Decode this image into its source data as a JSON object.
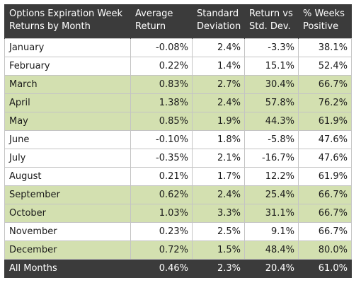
{
  "headers": [
    "Options Expiration Week Returns by Month",
    "Average Return",
    "Standard Deviation",
    "Return vs Std. Dev.",
    "% Weeks Positive"
  ],
  "rows": [
    {
      "month": "January",
      "avg": "-0.08%",
      "std": "2.4%",
      "ratio": "-3.3%",
      "pct": "38.1%",
      "highlight": false
    },
    {
      "month": "February",
      "avg": "0.22%",
      "std": "1.4%",
      "ratio": "15.1%",
      "pct": "52.4%",
      "highlight": false
    },
    {
      "month": "March",
      "avg": "0.83%",
      "std": "2.7%",
      "ratio": "30.4%",
      "pct": "66.7%",
      "highlight": true
    },
    {
      "month": "April",
      "avg": "1.38%",
      "std": "2.4%",
      "ratio": "57.8%",
      "pct": "76.2%",
      "highlight": true
    },
    {
      "month": "May",
      "avg": "0.85%",
      "std": "1.9%",
      "ratio": "44.3%",
      "pct": "61.9%",
      "highlight": true
    },
    {
      "month": "June",
      "avg": "-0.10%",
      "std": "1.8%",
      "ratio": "-5.8%",
      "pct": "47.6%",
      "highlight": false
    },
    {
      "month": "July",
      "avg": "-0.35%",
      "std": "2.1%",
      "ratio": "-16.7%",
      "pct": "47.6%",
      "highlight": false
    },
    {
      "month": "August",
      "avg": "0.21%",
      "std": "1.7%",
      "ratio": "12.2%",
      "pct": "61.9%",
      "highlight": false
    },
    {
      "month": "September",
      "avg": "0.62%",
      "std": "2.4%",
      "ratio": "25.4%",
      "pct": "66.7%",
      "highlight": true
    },
    {
      "month": "October",
      "avg": "1.03%",
      "std": "3.3%",
      "ratio": "31.1%",
      "pct": "66.7%",
      "highlight": true
    },
    {
      "month": "November",
      "avg": "0.23%",
      "std": "2.5%",
      "ratio": "9.1%",
      "pct": "66.7%",
      "highlight": false
    },
    {
      "month": "December",
      "avg": "0.72%",
      "std": "1.5%",
      "ratio": "48.4%",
      "pct": "80.0%",
      "highlight": true
    }
  ],
  "footer": {
    "month": "All Months",
    "avg": "0.46%",
    "std": "2.3%",
    "ratio": "20.4%",
    "pct": "61.0%"
  },
  "colors": {
    "header_bg": "#3b3b3b",
    "header_text": "#ffffff",
    "highlight_bg": "#d3e0b0",
    "border": "#c4c4c4"
  }
}
